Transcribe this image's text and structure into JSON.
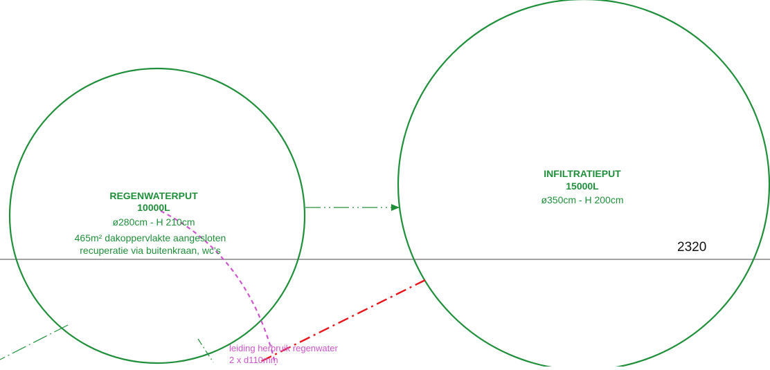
{
  "colors": {
    "tank": "#1f8f3a",
    "pipe_reuse": "#cc55cc",
    "overflow_line": "#e8141a",
    "reference_line": "#444444",
    "drain_line": "#1f8f3a"
  },
  "tanks": [
    {
      "name": "REGENWATERPUT",
      "volume": "10000L",
      "dimensions": "ø280cm - H 210cm",
      "note_line1": "465m² dakoppervlakte aangesloten",
      "note_line2": "recuperatie via buitenkraan, wc's"
    },
    {
      "name": "INFILTRATIEPUT",
      "volume": "15000L",
      "dimensions": "ø350cm - H 200cm"
    }
  ],
  "level": {
    "value": "2320"
  },
  "pipe": {
    "label_line1": "leiding herbruik regenwater",
    "label_line2": "2 x d110mm"
  }
}
